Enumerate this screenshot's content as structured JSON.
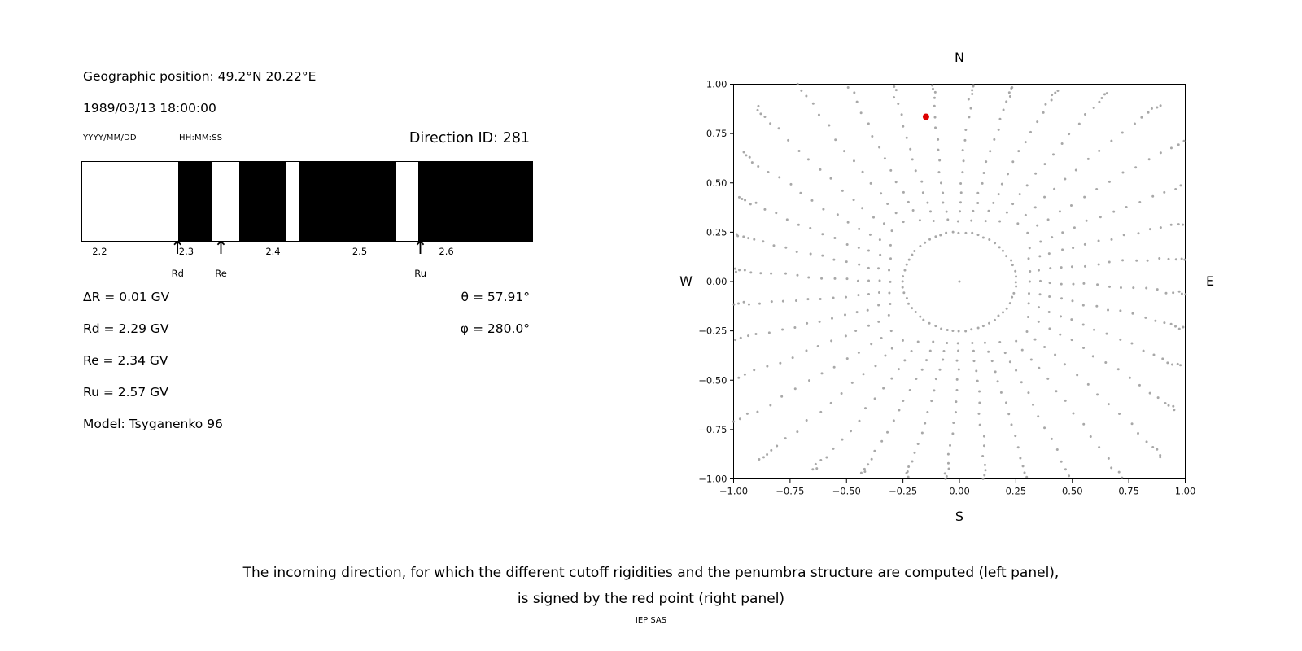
{
  "left_panel": {
    "geographic_position": "Geographic position: 49.2°N 20.22°E",
    "datetime": "1989/03/13 18:00:00",
    "date_format": "YYYY/MM/DD",
    "time_format": "HH:MM:SS",
    "direction_id": "Direction ID: 281",
    "delta_r": "ΔR = 0.01 GV",
    "rd": "Rd = 2.29 GV",
    "re": "Re = 2.34 GV",
    "ru": "Ru = 2.57 GV",
    "model": "Model: Tsyganenko 96",
    "theta": "θ = 57.91°",
    "phi": "φ = 280.0°"
  },
  "chart_data": [
    {
      "type": "bar",
      "name": "penumbra-structure",
      "description": "Penumbra structure: black bands are forbidden rigidity intervals, white allowed",
      "axis": {
        "min": 2.179,
        "max": 2.698,
        "ticks": [
          2.2,
          2.3,
          2.4,
          2.5,
          2.6
        ],
        "unit": "GV"
      },
      "forbidden_bands_gv": [
        [
          2.29,
          2.329
        ],
        [
          2.36,
          2.415
        ],
        [
          2.429,
          2.541
        ],
        [
          2.567,
          2.698
        ]
      ],
      "markers": [
        {
          "label": "Rd",
          "value_gv": 2.29
        },
        {
          "label": "Re",
          "value_gv": 2.34
        },
        {
          "label": "Ru",
          "value_gv": 2.57
        }
      ],
      "colors": {
        "forbidden": "#000000",
        "allowed": "#ffffff"
      }
    },
    {
      "type": "scatter",
      "name": "incoming-directions",
      "xlim": [
        -1,
        1
      ],
      "ylim": [
        -1,
        1
      ],
      "xticks": [
        -1,
        -0.75,
        -0.5,
        -0.25,
        0,
        0.25,
        0.5,
        0.75,
        1
      ],
      "yticks": [
        -1,
        -0.75,
        -0.5,
        -0.25,
        0,
        0.25,
        0.5,
        0.75,
        1
      ],
      "compass": {
        "north": "N",
        "south": "S",
        "east": "E",
        "west": "W"
      },
      "dot_color": "#999999",
      "red_point": {
        "x": -0.148,
        "y": 0.835,
        "color": "#dd0000",
        "radius_px": 4
      },
      "pattern": {
        "inner_ring": {
          "radius": 0.25,
          "count": 56
        },
        "center_dot": true,
        "spoke_count": 36,
        "azimuth_step_deg": 10,
        "spoke_radii": [
          0.31,
          0.355,
          0.4,
          0.45,
          0.5,
          0.555,
          0.61,
          0.665,
          0.72,
          0.775,
          0.83,
          0.88,
          0.92,
          0.95,
          0.972,
          0.988,
          1.0
        ],
        "curl_rad": 0.08,
        "max_diag_stretch": 1.26
      }
    }
  ],
  "caption": {
    "line1": "The incoming direction, for which the different cutoff rigidities and the penumbra structure are computed (left panel),",
    "line2": "is signed by the red point (right panel)",
    "credit": "IEP SAS"
  }
}
